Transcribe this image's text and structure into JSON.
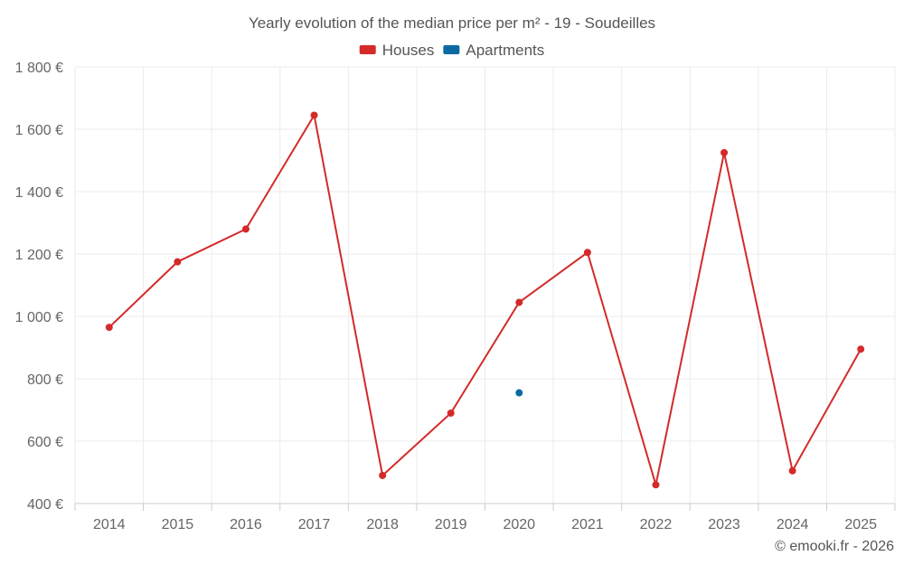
{
  "chart_data": {
    "type": "line",
    "title": "Yearly evolution of the median price per m² - 19 - Soudeilles",
    "categories": [
      "2014",
      "2015",
      "2016",
      "2017",
      "2018",
      "2019",
      "2020",
      "2021",
      "2022",
      "2023",
      "2024",
      "2025"
    ],
    "ylim": [
      400,
      1800
    ],
    "yticks": [
      400,
      600,
      800,
      1000,
      1200,
      1400,
      1600,
      1800
    ],
    "ytick_labels": [
      "400 €",
      "600 €",
      "800 €",
      "1 000 €",
      "1 200 €",
      "1 400 €",
      "1 600 €",
      "1 800 €"
    ],
    "grid": true,
    "legend_position": "top-center",
    "series": [
      {
        "name": "Houses",
        "color": "#d42a2a",
        "values": [
          965,
          1175,
          1280,
          1645,
          490,
          690,
          1045,
          1205,
          460,
          1525,
          505,
          895
        ]
      },
      {
        "name": "Apartments",
        "color": "#0a6aa1",
        "values": [
          null,
          null,
          null,
          null,
          null,
          null,
          755,
          null,
          null,
          null,
          null,
          null
        ]
      }
    ]
  },
  "credit": "© emooki.fr - 2026"
}
